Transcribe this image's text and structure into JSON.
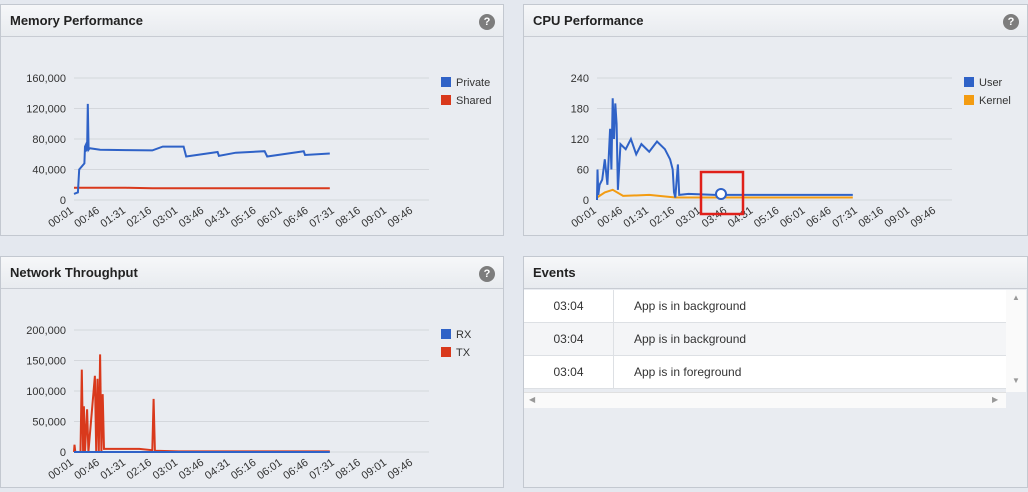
{
  "memory": {
    "title": "Memory Performance",
    "help": "?",
    "chart_data": {
      "type": "line",
      "title": "Memory Performance",
      "y_ticks": [
        "160,000",
        "120,000",
        "80,000",
        "40,000",
        "0"
      ],
      "y_values": [
        160000,
        120000,
        80000,
        40000,
        0
      ],
      "ylim": [
        0,
        160000
      ],
      "x_ticks": [
        "00:01",
        "00:46",
        "01:31",
        "02:16",
        "03:01",
        "03:46",
        "04:31",
        "05:16",
        "06:01",
        "06:46",
        "07:31",
        "08:16",
        "09:01",
        "09:46"
      ],
      "legend": [
        {
          "name": "Private",
          "color": "#2f62c7"
        },
        {
          "name": "Shared",
          "color": "#d9391c"
        }
      ],
      "series": [
        {
          "name": "Private",
          "color": "#2f62c7",
          "points": [
            [
              0,
              8000
            ],
            [
              0.08,
              9000
            ],
            [
              0.15,
              10000
            ],
            [
              0.2,
              40000
            ],
            [
              0.4,
              48000
            ],
            [
              0.42,
              70000
            ],
            [
              0.45,
              72000
            ],
            [
              0.47,
              65000
            ],
            [
              0.5,
              66000
            ],
            [
              0.53,
              126000
            ],
            [
              0.56,
              66000
            ],
            [
              0.6,
              68000
            ],
            [
              1.0,
              66000
            ],
            [
              2.0,
              65500
            ],
            [
              3.0,
              65000
            ],
            [
              3.4,
              70000
            ],
            [
              4.2,
              70000
            ],
            [
              4.3,
              57000
            ],
            [
              5.5,
              63000
            ],
            [
              5.55,
              58000
            ],
            [
              6.2,
              62000
            ],
            [
              7.3,
              64000
            ],
            [
              7.4,
              57000
            ],
            [
              8.8,
              64000
            ],
            [
              8.85,
              59000
            ],
            [
              9.8,
              61000
            ]
          ]
        },
        {
          "name": "Shared",
          "color": "#d9391c",
          "points": [
            [
              0,
              16000
            ],
            [
              2.0,
              16000
            ],
            [
              3.0,
              15500
            ],
            [
              9.8,
              15500
            ]
          ]
        }
      ]
    }
  },
  "cpu": {
    "title": "CPU Performance",
    "help": "?",
    "chart_data": {
      "type": "line",
      "title": "CPU Performance",
      "y_ticks": [
        "240",
        "180",
        "120",
        "60",
        "0"
      ],
      "y_values": [
        240,
        180,
        120,
        60,
        0
      ],
      "ylim": [
        0,
        240
      ],
      "x_ticks": [
        "00:01",
        "00:46",
        "01:31",
        "02:16",
        "03:01",
        "03:46",
        "04:31",
        "05:16",
        "06:01",
        "06:46",
        "07:31",
        "08:16",
        "09:01",
        "09:46"
      ],
      "legend": [
        {
          "name": "User",
          "color": "#2f62c7"
        },
        {
          "name": "Kernel",
          "color": "#f39c12"
        }
      ],
      "series": [
        {
          "name": "User",
          "color": "#2f62c7",
          "points": [
            [
              0,
              0
            ],
            [
              0.02,
              60
            ],
            [
              0.05,
              10
            ],
            [
              0.1,
              30
            ],
            [
              0.2,
              40
            ],
            [
              0.3,
              80
            ],
            [
              0.4,
              30
            ],
            [
              0.5,
              140
            ],
            [
              0.55,
              60
            ],
            [
              0.6,
              200
            ],
            [
              0.65,
              120
            ],
            [
              0.7,
              190
            ],
            [
              0.75,
              150
            ],
            [
              0.8,
              20
            ],
            [
              0.9,
              110
            ],
            [
              1.1,
              100
            ],
            [
              1.3,
              120
            ],
            [
              1.5,
              90
            ],
            [
              1.7,
              110
            ],
            [
              2.0,
              95
            ],
            [
              2.3,
              115
            ],
            [
              2.6,
              100
            ],
            [
              2.8,
              80
            ],
            [
              2.9,
              60
            ],
            [
              2.95,
              15
            ],
            [
              3.0,
              5
            ],
            [
              3.1,
              70
            ],
            [
              3.15,
              10
            ],
            [
              3.5,
              12
            ],
            [
              4.5,
              10
            ],
            [
              9.8,
              10
            ]
          ]
        },
        {
          "name": "Kernel",
          "color": "#f39c12",
          "points": [
            [
              0,
              5
            ],
            [
              0.3,
              15
            ],
            [
              0.6,
              20
            ],
            [
              1.0,
              8
            ],
            [
              2.0,
              10
            ],
            [
              3.0,
              5
            ],
            [
              9.8,
              5
            ]
          ]
        }
      ]
    }
  },
  "network": {
    "title": "Network Throughput",
    "help": "?",
    "chart_data": {
      "type": "line",
      "title": "Network Throughput",
      "y_ticks": [
        "200,000",
        "150,000",
        "100,000",
        "50,000",
        "0"
      ],
      "y_values": [
        200000,
        150000,
        100000,
        50000,
        0
      ],
      "ylim": [
        0,
        200000
      ],
      "x_ticks": [
        "00:01",
        "00:46",
        "01:31",
        "02:16",
        "03:01",
        "03:46",
        "04:31",
        "05:16",
        "06:01",
        "06:46",
        "07:31",
        "08:16",
        "09:01",
        "09:46"
      ],
      "legend": [
        {
          "name": "RX",
          "color": "#2f62c7"
        },
        {
          "name": "TX",
          "color": "#d9391c"
        }
      ],
      "series": [
        {
          "name": "RX",
          "color": "#2f62c7",
          "points": [
            [
              0,
              0
            ],
            [
              9.8,
              0
            ]
          ]
        },
        {
          "name": "TX",
          "color": "#d9391c",
          "points": [
            [
              0,
              0
            ],
            [
              0.02,
              12000
            ],
            [
              0.05,
              0
            ],
            [
              0.25,
              0
            ],
            [
              0.3,
              135000
            ],
            [
              0.35,
              0
            ],
            [
              0.38,
              75000
            ],
            [
              0.42,
              0
            ],
            [
              0.5,
              70000
            ],
            [
              0.55,
              0
            ],
            [
              0.8,
              125000
            ],
            [
              0.85,
              0
            ],
            [
              0.9,
              120000
            ],
            [
              0.95,
              0
            ],
            [
              1.0,
              160000
            ],
            [
              1.05,
              0
            ],
            [
              1.1,
              95000
            ],
            [
              1.15,
              5000
            ],
            [
              2.5,
              5000
            ],
            [
              3.0,
              3000
            ],
            [
              3.05,
              87000
            ],
            [
              3.1,
              2000
            ],
            [
              4.0,
              1000
            ],
            [
              9.8,
              1000
            ]
          ]
        }
      ]
    }
  },
  "events": {
    "title": "Events",
    "rows": [
      {
        "time": "03:04",
        "message": "App is in background"
      },
      {
        "time": "03:04",
        "message": "App is in background"
      },
      {
        "time": "03:04",
        "message": "App is in foreground"
      }
    ]
  }
}
